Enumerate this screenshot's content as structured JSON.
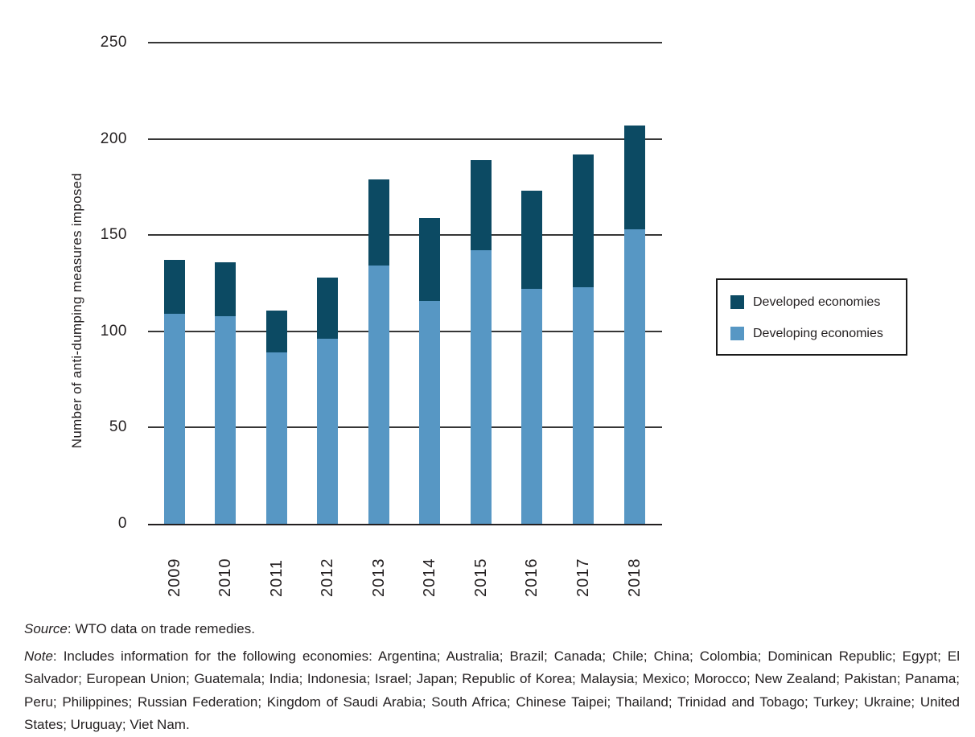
{
  "figure": {
    "y_axis_title": "Number of anti-dumping measures imposed",
    "source_label": "Source",
    "source_text": ": WTO data on trade remedies.",
    "note_label": "Note",
    "note_text": ": Includes information for the following economies: Argentina; Australia; Brazil; Canada; Chile; China; Colombia; Dominican Republic; Egypt; El Salvador; European Union; Guatemala; India; Indonesia; Israel; Japan; Republic of Korea; Malaysia; Mexico; Morocco; New Zealand; Pakistan; Panama; Peru; Philippines; Russian Federation; Kingdom of Saudi Arabia; South Africa; Chinese Taipei; Thailand; Trinidad and Tobago; Turkey; Ukraine; United States; Uruguay; Viet Nam."
  },
  "legend": {
    "items": [
      {
        "label": "Developed economies",
        "color": "#0c4a63"
      },
      {
        "label": "Developing economies",
        "color": "#5797c4"
      }
    ]
  },
  "colors": {
    "developed": "#0c4a63",
    "developing": "#5797c4",
    "gridline": "#363636",
    "axis": "#231f20"
  },
  "chart_data": {
    "type": "bar",
    "stacked": true,
    "title": "",
    "xlabel": "",
    "ylabel": "Number of anti-dumping measures imposed",
    "categories": [
      "2009",
      "2010",
      "2011",
      "2012",
      "2013",
      "2014",
      "2015",
      "2016",
      "2017",
      "2018"
    ],
    "series": [
      {
        "name": "Developed economies",
        "color": "#0c4a63",
        "values": [
          28,
          28,
          22,
          32,
          45,
          43,
          47,
          51,
          69,
          54
        ]
      },
      {
        "name": "Developing economies",
        "color": "#5797c4",
        "values": [
          109,
          108,
          89,
          96,
          134,
          116,
          142,
          122,
          123,
          153
        ]
      }
    ],
    "totals": [
      137,
      136,
      111,
      128,
      179,
      159,
      189,
      173,
      192,
      207
    ],
    "ylim": [
      0,
      250
    ],
    "yticks": [
      0,
      50,
      100,
      150,
      200,
      250
    ],
    "grid": true,
    "legend_position": "right"
  }
}
